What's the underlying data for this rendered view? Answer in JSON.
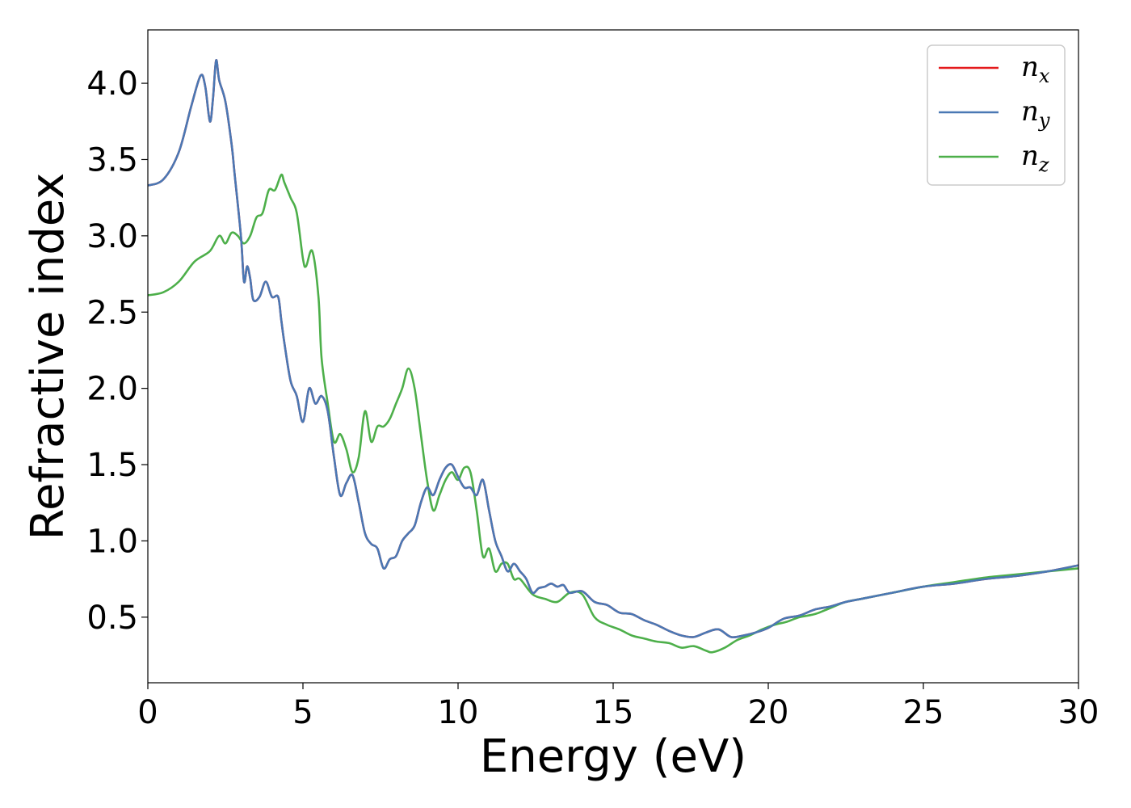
{
  "chart_data": {
    "type": "line",
    "xlabel": "Energy (eV)",
    "ylabel": "Refractive index",
    "xlim": [
      0,
      30
    ],
    "ylim": [
      0.07,
      4.35
    ],
    "xticks": [
      0,
      5,
      10,
      15,
      20,
      25,
      30
    ],
    "yticks": [
      0.5,
      1.0,
      1.5,
      2.0,
      2.5,
      3.0,
      3.5,
      4.0
    ],
    "grid": false,
    "legend_position": "top-right",
    "series": [
      {
        "name": "n",
        "subscript": "x",
        "color": "#e41a1c",
        "x": [
          0,
          0.5,
          1.0,
          1.4,
          1.7,
          1.85,
          2.0,
          2.1,
          2.2,
          2.3,
          2.5,
          2.7,
          2.8,
          3.0,
          3.1,
          3.2,
          3.3,
          3.4,
          3.6,
          3.8,
          4.0,
          4.2,
          4.3,
          4.4,
          4.6,
          4.8,
          5.0,
          5.2,
          5.4,
          5.6,
          5.8,
          6.0,
          6.2,
          6.4,
          6.6,
          6.8,
          7.0,
          7.2,
          7.4,
          7.6,
          7.8,
          8.0,
          8.2,
          8.4,
          8.6,
          8.8,
          9.0,
          9.2,
          9.4,
          9.6,
          9.8,
          10.0,
          10.2,
          10.4,
          10.6,
          10.8,
          11.0,
          11.2,
          11.4,
          11.6,
          11.8,
          12.0,
          12.2,
          12.4,
          12.6,
          12.8,
          13.0,
          13.2,
          13.4,
          13.6,
          14.0,
          14.4,
          14.8,
          15.2,
          15.6,
          16.0,
          16.4,
          16.8,
          17.2,
          17.6,
          18.0,
          18.4,
          18.8,
          19.2,
          19.6,
          20.0,
          20.5,
          21.0,
          21.5,
          22.0,
          22.5,
          23.0,
          24.0,
          25.0,
          26.0,
          27.0,
          28.0,
          29.0,
          30.0
        ],
        "values": [
          3.33,
          3.37,
          3.55,
          3.85,
          4.05,
          3.98,
          3.75,
          3.9,
          4.15,
          4.02,
          3.88,
          3.6,
          3.4,
          3.0,
          2.7,
          2.8,
          2.72,
          2.58,
          2.6,
          2.7,
          2.6,
          2.6,
          2.45,
          2.3,
          2.05,
          1.95,
          1.78,
          2.0,
          1.9,
          1.95,
          1.85,
          1.55,
          1.3,
          1.38,
          1.43,
          1.25,
          1.05,
          0.98,
          0.95,
          0.82,
          0.88,
          0.9,
          1.0,
          1.05,
          1.1,
          1.25,
          1.35,
          1.3,
          1.4,
          1.48,
          1.5,
          1.42,
          1.35,
          1.35,
          1.3,
          1.4,
          1.2,
          1.0,
          0.9,
          0.8,
          0.85,
          0.8,
          0.75,
          0.66,
          0.69,
          0.7,
          0.72,
          0.7,
          0.71,
          0.66,
          0.67,
          0.6,
          0.58,
          0.53,
          0.52,
          0.48,
          0.45,
          0.41,
          0.38,
          0.37,
          0.4,
          0.42,
          0.37,
          0.38,
          0.4,
          0.43,
          0.49,
          0.51,
          0.55,
          0.57,
          0.6,
          0.62,
          0.66,
          0.7,
          0.72,
          0.75,
          0.77,
          0.8,
          0.84
        ]
      },
      {
        "name": "n",
        "subscript": "y",
        "color": "#4a78b4",
        "x": [
          0,
          0.5,
          1.0,
          1.4,
          1.7,
          1.85,
          2.0,
          2.1,
          2.2,
          2.3,
          2.5,
          2.7,
          2.8,
          3.0,
          3.1,
          3.2,
          3.3,
          3.4,
          3.6,
          3.8,
          4.0,
          4.2,
          4.3,
          4.4,
          4.6,
          4.8,
          5.0,
          5.2,
          5.4,
          5.6,
          5.8,
          6.0,
          6.2,
          6.4,
          6.6,
          6.8,
          7.0,
          7.2,
          7.4,
          7.6,
          7.8,
          8.0,
          8.2,
          8.4,
          8.6,
          8.8,
          9.0,
          9.2,
          9.4,
          9.6,
          9.8,
          10.0,
          10.2,
          10.4,
          10.6,
          10.8,
          11.0,
          11.2,
          11.4,
          11.6,
          11.8,
          12.0,
          12.2,
          12.4,
          12.6,
          12.8,
          13.0,
          13.2,
          13.4,
          13.6,
          14.0,
          14.4,
          14.8,
          15.2,
          15.6,
          16.0,
          16.4,
          16.8,
          17.2,
          17.6,
          18.0,
          18.4,
          18.8,
          19.2,
          19.6,
          20.0,
          20.5,
          21.0,
          21.5,
          22.0,
          22.5,
          23.0,
          24.0,
          25.0,
          26.0,
          27.0,
          28.0,
          29.0,
          30.0
        ],
        "values": [
          3.33,
          3.37,
          3.55,
          3.85,
          4.05,
          3.98,
          3.75,
          3.9,
          4.15,
          4.02,
          3.88,
          3.6,
          3.4,
          3.0,
          2.7,
          2.8,
          2.72,
          2.58,
          2.6,
          2.7,
          2.6,
          2.6,
          2.45,
          2.3,
          2.05,
          1.95,
          1.78,
          2.0,
          1.9,
          1.95,
          1.85,
          1.55,
          1.3,
          1.38,
          1.43,
          1.25,
          1.05,
          0.98,
          0.95,
          0.82,
          0.88,
          0.9,
          1.0,
          1.05,
          1.1,
          1.25,
          1.35,
          1.3,
          1.4,
          1.48,
          1.5,
          1.42,
          1.35,
          1.35,
          1.3,
          1.4,
          1.2,
          1.0,
          0.9,
          0.8,
          0.85,
          0.8,
          0.75,
          0.66,
          0.69,
          0.7,
          0.72,
          0.7,
          0.71,
          0.66,
          0.67,
          0.6,
          0.58,
          0.53,
          0.52,
          0.48,
          0.45,
          0.41,
          0.38,
          0.37,
          0.4,
          0.42,
          0.37,
          0.38,
          0.4,
          0.43,
          0.49,
          0.51,
          0.55,
          0.57,
          0.6,
          0.62,
          0.66,
          0.7,
          0.72,
          0.75,
          0.77,
          0.8,
          0.84
        ]
      },
      {
        "name": "n",
        "subscript": "z",
        "color": "#4daf4a",
        "x": [
          0,
          0.5,
          1.0,
          1.5,
          2.0,
          2.3,
          2.5,
          2.7,
          2.9,
          3.1,
          3.3,
          3.5,
          3.7,
          3.9,
          4.1,
          4.3,
          4.4,
          4.6,
          4.8,
          5.0,
          5.1,
          5.3,
          5.5,
          5.6,
          5.8,
          6.0,
          6.2,
          6.4,
          6.6,
          6.8,
          7.0,
          7.2,
          7.4,
          7.6,
          7.8,
          8.0,
          8.2,
          8.4,
          8.6,
          8.8,
          9.0,
          9.2,
          9.4,
          9.6,
          9.8,
          10.0,
          10.2,
          10.4,
          10.6,
          10.8,
          11.0,
          11.2,
          11.4,
          11.6,
          11.8,
          12.0,
          12.4,
          12.8,
          13.2,
          13.6,
          14.0,
          14.4,
          14.8,
          15.2,
          15.6,
          16.0,
          16.4,
          16.8,
          17.2,
          17.6,
          18.0,
          18.2,
          18.6,
          19.0,
          19.4,
          19.8,
          20.2,
          20.6,
          21.0,
          21.5,
          22.0,
          22.5,
          23.0,
          24.0,
          25.0,
          26.0,
          27.0,
          28.0,
          29.0,
          30.0
        ],
        "values": [
          2.61,
          2.63,
          2.7,
          2.83,
          2.9,
          3.0,
          2.95,
          3.02,
          3.0,
          2.95,
          3.0,
          3.12,
          3.15,
          3.3,
          3.3,
          3.4,
          3.35,
          3.25,
          3.15,
          2.85,
          2.8,
          2.9,
          2.6,
          2.2,
          1.9,
          1.65,
          1.7,
          1.6,
          1.45,
          1.55,
          1.85,
          1.65,
          1.75,
          1.75,
          1.8,
          1.9,
          2.0,
          2.13,
          2.0,
          1.7,
          1.4,
          1.2,
          1.3,
          1.4,
          1.45,
          1.4,
          1.48,
          1.45,
          1.2,
          0.9,
          0.95,
          0.8,
          0.85,
          0.85,
          0.75,
          0.75,
          0.65,
          0.62,
          0.6,
          0.66,
          0.65,
          0.5,
          0.45,
          0.42,
          0.38,
          0.36,
          0.34,
          0.33,
          0.3,
          0.31,
          0.28,
          0.27,
          0.3,
          0.35,
          0.38,
          0.42,
          0.45,
          0.47,
          0.5,
          0.52,
          0.56,
          0.6,
          0.62,
          0.66,
          0.7,
          0.73,
          0.76,
          0.78,
          0.8,
          0.82
        ]
      }
    ]
  }
}
